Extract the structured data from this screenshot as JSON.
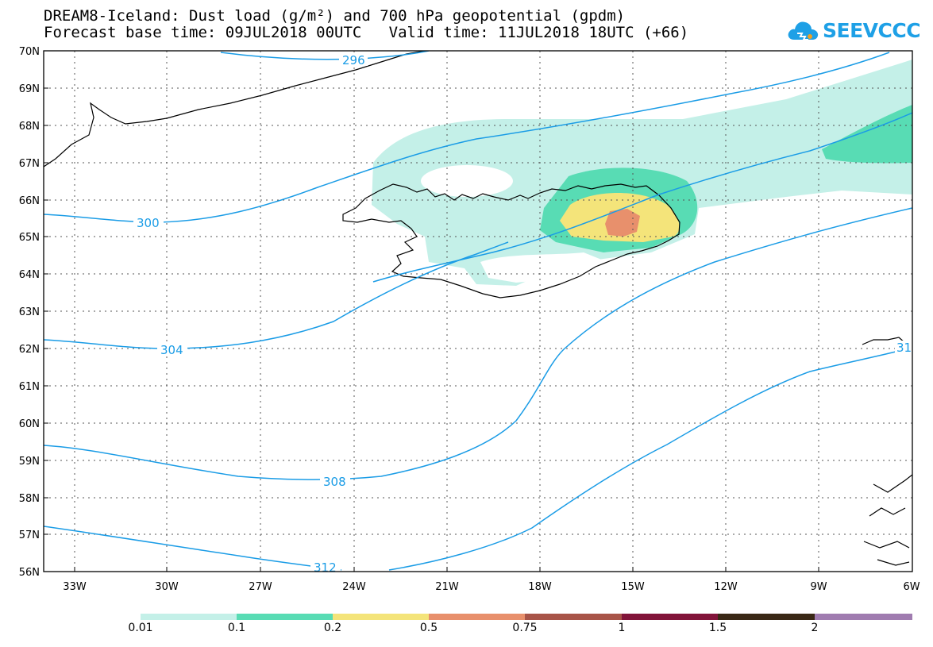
{
  "header": {
    "title_line1": "DREAM8-Iceland: Dust load (g/m²) and 700 hPa geopotential (gpdm)",
    "title_line2": "Forecast base time: 09JUL2018 00UTC   Valid time: 11JUL2018 18UTC (+66)"
  },
  "logo": {
    "text": "SEEVCCC",
    "icon": "cloud-logo-icon",
    "color": "#1ea0e6"
  },
  "map": {
    "lat_labels": [
      "70N",
      "69N",
      "68N",
      "67N",
      "66N",
      "65N",
      "64N",
      "63N",
      "62N",
      "61N",
      "60N",
      "59N",
      "58N",
      "57N",
      "56N"
    ],
    "lon_labels": [
      "33W",
      "30W",
      "27W",
      "24W",
      "21W",
      "18W",
      "15W",
      "12W",
      "9W",
      "6W"
    ],
    "contour_color": "#1a9ce6",
    "contour_labels": [
      "296",
      "300",
      "304",
      "308",
      "312",
      "31"
    ]
  },
  "colorbar": {
    "colors": [
      "#c4f0e8",
      "#58dcb4",
      "#f4e47a",
      "#e8906c",
      "#a85448",
      "#82143a",
      "#3a2816",
      "#a07cb0"
    ],
    "labels": [
      "0.01",
      "0.1",
      "0.2",
      "0.5",
      "0.75",
      "1",
      "1.5",
      "2"
    ]
  }
}
